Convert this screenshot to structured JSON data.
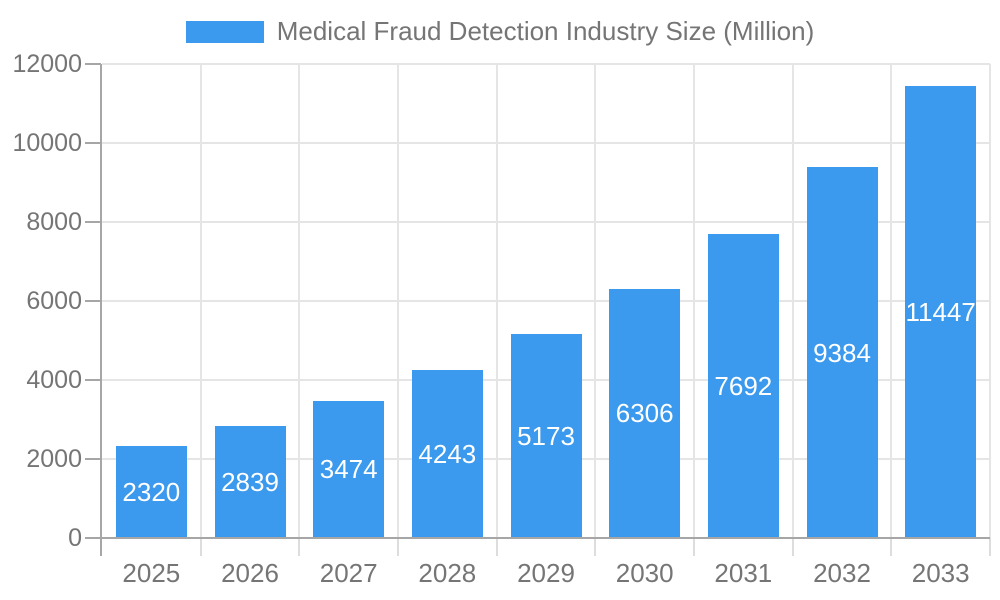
{
  "legend": {
    "label": "Medical Fraud Detection Industry Size (Million)"
  },
  "chart_data": {
    "type": "bar",
    "title": "Medical Fraud Detection Industry Size (Million)",
    "categories": [
      "2025",
      "2026",
      "2027",
      "2028",
      "2029",
      "2030",
      "2031",
      "2032",
      "2033"
    ],
    "values": [
      2320,
      2839,
      3474,
      4243,
      5173,
      6306,
      7692,
      9384,
      11447
    ],
    "xlabel": "",
    "ylabel": "",
    "ylim": [
      0,
      12000
    ],
    "yticks": [
      0,
      2000,
      4000,
      6000,
      8000,
      10000,
      12000
    ],
    "grid": true,
    "legend_position": "top-center",
    "value_labels": "inside-center",
    "colors": {
      "bar": "#3B99EE",
      "value_label": "#FFFFFF",
      "grid": "#E5E5E5",
      "axis": "#A6A6A6",
      "y_tick": "#A6A6A6",
      "x_tick": "#DDDDDD",
      "tick_label": "#757575",
      "legend_text": "#757575",
      "background": "#FFFFFF"
    }
  }
}
